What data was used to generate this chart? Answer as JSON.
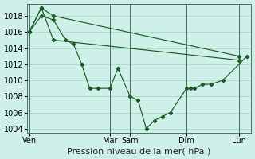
{
  "bg_color": "#cef0e8",
  "grid_color": "#a8d8cc",
  "line_color": "#1a5c28",
  "marker_color": "#1a5c28",
  "xlabel": "Pression niveau de la mer( hPa )",
  "xlabel_fontsize": 8,
  "tick_fontsize": 7,
  "ylim": [
    1003.5,
    1019.5
  ],
  "yticks": [
    1004,
    1006,
    1008,
    1010,
    1012,
    1014,
    1016,
    1018
  ],
  "day_labels": [
    "Ven",
    "Mar",
    "Sam",
    "Dim",
    "Lun"
  ],
  "day_x": [
    0.0,
    10.0,
    12.5,
    19.5,
    26.0
  ],
  "xlim": [
    -0.3,
    27.5
  ],
  "series1_x": [
    0,
    1.5,
    3,
    4.5,
    5.5,
    6.5,
    7.5,
    8.5,
    10.0,
    11.0,
    12.5,
    13.5,
    14.5,
    15.5,
    16.5,
    17.5,
    19.5,
    20.0,
    20.5,
    21.5,
    22.5,
    24.0,
    27.0
  ],
  "series1_y": [
    1016,
    1018,
    1017.5,
    1015,
    1014.5,
    1012,
    1009,
    1009,
    1009,
    1011.5,
    1008,
    1007.5,
    1004,
    1005,
    1005.5,
    1006,
    1009,
    1009,
    1009,
    1009.5,
    1009.5,
    1010,
    1013
  ],
  "series2_x": [
    0,
    1.5,
    3,
    26.0
  ],
  "series2_y": [
    1016,
    1019,
    1018,
    1013
  ],
  "series3_x": [
    0,
    1.5,
    3,
    26.0
  ],
  "series3_y": [
    1016,
    1019,
    1015,
    1012.5
  ],
  "vline_positions": [
    0.0,
    10.0,
    12.5,
    19.5,
    26.0
  ]
}
